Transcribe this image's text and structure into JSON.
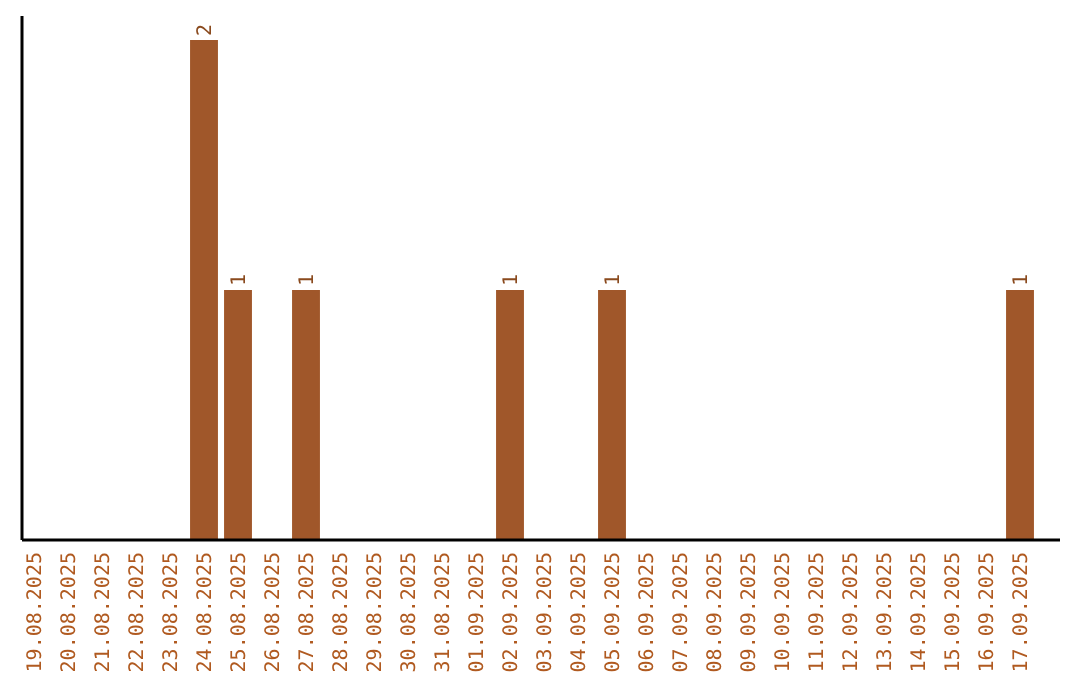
{
  "chart_data": {
    "type": "bar",
    "categories": [
      "19.08.2025",
      "20.08.2025",
      "21.08.2025",
      "22.08.2025",
      "23.08.2025",
      "24.08.2025",
      "25.08.2025",
      "26.08.2025",
      "27.08.2025",
      "28.08.2025",
      "29.08.2025",
      "30.08.2025",
      "31.08.2025",
      "01.09.2025",
      "02.09.2025",
      "03.09.2025",
      "04.09.2025",
      "05.09.2025",
      "06.09.2025",
      "07.09.2025",
      "08.09.2025",
      "09.09.2025",
      "10.09.2025",
      "11.09.2025",
      "12.09.2025",
      "13.09.2025",
      "14.09.2025",
      "15.09.2025",
      "16.09.2025",
      "17.09.2025"
    ],
    "values": [
      0,
      0,
      0,
      0,
      0,
      2,
      1,
      0,
      1,
      0,
      0,
      0,
      0,
      0,
      1,
      0,
      0,
      1,
      0,
      0,
      0,
      0,
      0,
      0,
      0,
      0,
      0,
      0,
      0,
      1
    ],
    "value_labels": [
      null,
      null,
      null,
      null,
      null,
      "2",
      "1",
      null,
      "1",
      null,
      null,
      null,
      null,
      null,
      "1",
      null,
      null,
      "1",
      null,
      null,
      null,
      null,
      null,
      null,
      null,
      null,
      null,
      null,
      null,
      "1"
    ],
    "color": "#a0572a",
    "tick_labels": "x"
  }
}
